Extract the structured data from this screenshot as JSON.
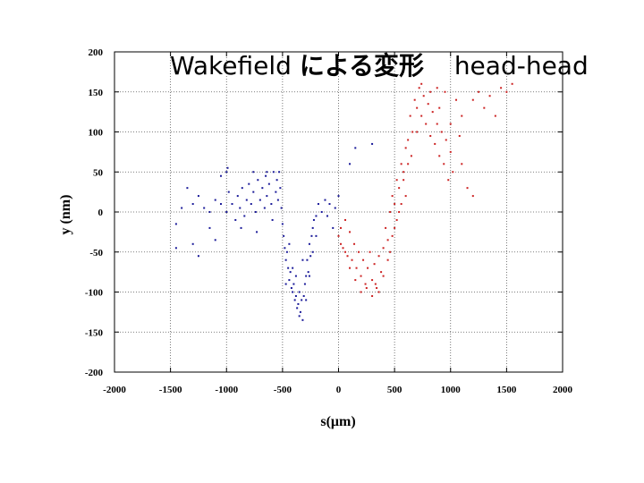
{
  "slide_title": {
    "main": "Wakefield",
    "japanese": "による変形",
    "suffix": "head-head"
  },
  "chart_data": {
    "type": "scatter",
    "title": "",
    "xlabel": "s(μm)",
    "ylabel": "y (nm)",
    "xlim": [
      -2000,
      2000
    ],
    "ylim": [
      -200,
      200
    ],
    "xticks": [
      -2000,
      -1500,
      -1000,
      -500,
      0,
      500,
      1000,
      1500,
      2000
    ],
    "yticks": [
      -200,
      -150,
      -100,
      -50,
      0,
      50,
      100,
      150,
      200
    ],
    "xtick_labels": [
      "-2000",
      "-1500",
      "-1000",
      "-500",
      "0",
      "500",
      "1000",
      "1500",
      "2000"
    ],
    "ytick_labels": [
      "-200",
      "-150",
      "-100",
      "-50",
      "0",
      "50",
      "100",
      "150",
      "200"
    ],
    "grid": true,
    "grid_style": "dotted",
    "colors": {
      "blue_bunch": "#1a1a99",
      "red_bunch": "#cc2222"
    },
    "series": [
      {
        "color": "#1a1a99",
        "points": [
          [
            -1450,
            -15
          ],
          [
            -1400,
            5
          ],
          [
            -1350,
            30
          ],
          [
            -1300,
            10
          ],
          [
            -1300,
            -40
          ],
          [
            -1250,
            20
          ],
          [
            -1200,
            5
          ],
          [
            -1150,
            0
          ],
          [
            -1150,
            -20
          ],
          [
            -1100,
            15
          ],
          [
            -1100,
            -35
          ],
          [
            -1050,
            45
          ],
          [
            -1050,
            10
          ],
          [
            -1000,
            50
          ],
          [
            -1000,
            0
          ],
          [
            -980,
            25
          ],
          [
            -950,
            10
          ],
          [
            -920,
            -10
          ],
          [
            -900,
            20
          ],
          [
            -880,
            5
          ],
          [
            -860,
            30
          ],
          [
            -840,
            -5
          ],
          [
            -820,
            15
          ],
          [
            -800,
            35
          ],
          [
            -780,
            10
          ],
          [
            -760,
            25
          ],
          [
            -740,
            0
          ],
          [
            -720,
            40
          ],
          [
            -700,
            15
          ],
          [
            -680,
            30
          ],
          [
            -660,
            5
          ],
          [
            -650,
            45
          ],
          [
            -640,
            20
          ],
          [
            -620,
            35
          ],
          [
            -600,
            10
          ],
          [
            -580,
            50
          ],
          [
            -560,
            25
          ],
          [
            -550,
            40
          ],
          [
            -540,
            15
          ],
          [
            -520,
            30
          ],
          [
            -510,
            5
          ],
          [
            -500,
            -15
          ],
          [
            -490,
            -30
          ],
          [
            -480,
            -45
          ],
          [
            -470,
            -60
          ],
          [
            -460,
            -50
          ],
          [
            -450,
            -70
          ],
          [
            -440,
            -85
          ],
          [
            -430,
            -75
          ],
          [
            -420,
            -95
          ],
          [
            -410,
            -100
          ],
          [
            -400,
            -90
          ],
          [
            -390,
            -110
          ],
          [
            -380,
            -105
          ],
          [
            -370,
            -120
          ],
          [
            -360,
            -115
          ],
          [
            -350,
            -100
          ],
          [
            -340,
            -125
          ],
          [
            -330,
            -110
          ],
          [
            -320,
            -135
          ],
          [
            -310,
            -105
          ],
          [
            -300,
            -90
          ],
          [
            -290,
            -80
          ],
          [
            -280,
            -60
          ],
          [
            -270,
            -75
          ],
          [
            -260,
            -40
          ],
          [
            -250,
            -55
          ],
          [
            -240,
            -30
          ],
          [
            -230,
            -20
          ],
          [
            -220,
            -10
          ],
          [
            -200,
            -5
          ],
          [
            -180,
            10
          ],
          [
            -150,
            0
          ],
          [
            -120,
            15
          ],
          [
            -100,
            -5
          ],
          [
            -80,
            10
          ],
          [
            -50,
            -20
          ],
          [
            -30,
            5
          ],
          [
            0,
            20
          ],
          [
            100,
            60
          ],
          [
            150,
            80
          ],
          [
            300,
            85
          ],
          [
            -1250,
            -55
          ],
          [
            -1450,
            -45
          ],
          [
            -990,
            55
          ],
          [
            -870,
            -20
          ],
          [
            -760,
            50
          ],
          [
            -730,
            -25
          ],
          [
            -640,
            50
          ],
          [
            -590,
            -10
          ],
          [
            -530,
            50
          ],
          [
            -470,
            -90
          ],
          [
            -440,
            -40
          ],
          [
            -410,
            -70
          ],
          [
            -380,
            -80
          ],
          [
            -350,
            -130
          ],
          [
            -320,
            -60
          ],
          [
            -290,
            -110
          ],
          [
            -260,
            -80
          ],
          [
            -230,
            -50
          ],
          [
            -200,
            -30
          ]
        ]
      },
      {
        "color": "#cc2222",
        "points": [
          [
            0,
            -30
          ],
          [
            20,
            -20
          ],
          [
            40,
            -45
          ],
          [
            60,
            -10
          ],
          [
            80,
            -55
          ],
          [
            100,
            -25
          ],
          [
            120,
            -60
          ],
          [
            140,
            -40
          ],
          [
            160,
            -70
          ],
          [
            180,
            -50
          ],
          [
            200,
            -80
          ],
          [
            220,
            -60
          ],
          [
            240,
            -90
          ],
          [
            260,
            -70
          ],
          [
            280,
            -50
          ],
          [
            300,
            -85
          ],
          [
            320,
            -65
          ],
          [
            340,
            -95
          ],
          [
            360,
            -55
          ],
          [
            380,
            -75
          ],
          [
            400,
            -45
          ],
          [
            420,
            -20
          ],
          [
            440,
            -35
          ],
          [
            460,
            0
          ],
          [
            480,
            20
          ],
          [
            500,
            10
          ],
          [
            520,
            40
          ],
          [
            540,
            30
          ],
          [
            560,
            60
          ],
          [
            580,
            50
          ],
          [
            600,
            80
          ],
          [
            620,
            90
          ],
          [
            640,
            120
          ],
          [
            660,
            100
          ],
          [
            680,
            140
          ],
          [
            700,
            130
          ],
          [
            720,
            155
          ],
          [
            740,
            120
          ],
          [
            760,
            145
          ],
          [
            780,
            110
          ],
          [
            800,
            135
          ],
          [
            820,
            95
          ],
          [
            840,
            125
          ],
          [
            860,
            85
          ],
          [
            880,
            110
          ],
          [
            900,
            70
          ],
          [
            920,
            100
          ],
          [
            940,
            60
          ],
          [
            960,
            90
          ],
          [
            980,
            40
          ],
          [
            1000,
            75
          ],
          [
            1020,
            50
          ],
          [
            1050,
            140
          ],
          [
            1100,
            60
          ],
          [
            1150,
            30
          ],
          [
            1200,
            20
          ],
          [
            1250,
            150
          ],
          [
            1300,
            130
          ],
          [
            1350,
            145
          ],
          [
            1400,
            120
          ],
          [
            1450,
            155
          ],
          [
            1500,
            150
          ],
          [
            1550,
            160
          ],
          [
            1080,
            95
          ],
          [
            950,
            150
          ],
          [
            880,
            155
          ],
          [
            600,
            20
          ],
          [
            560,
            10
          ],
          [
            520,
            -10
          ],
          [
            480,
            -30
          ],
          [
            440,
            -60
          ],
          [
            400,
            -80
          ],
          [
            360,
            -100
          ],
          [
            330,
            -90
          ],
          [
            300,
            -105
          ],
          [
            250,
            -95
          ],
          [
            200,
            -100
          ],
          [
            150,
            -85
          ],
          [
            100,
            -70
          ],
          [
            60,
            -50
          ],
          [
            20,
            -40
          ],
          [
            700,
            100
          ],
          [
            740,
            160
          ],
          [
            820,
            150
          ],
          [
            900,
            130
          ],
          [
            1000,
            110
          ],
          [
            1100,
            120
          ],
          [
            1200,
            140
          ],
          [
            650,
            70
          ],
          [
            620,
            60
          ],
          [
            580,
            40
          ],
          [
            540,
            0
          ],
          [
            500,
            -20
          ],
          [
            460,
            -50
          ]
        ]
      }
    ]
  }
}
